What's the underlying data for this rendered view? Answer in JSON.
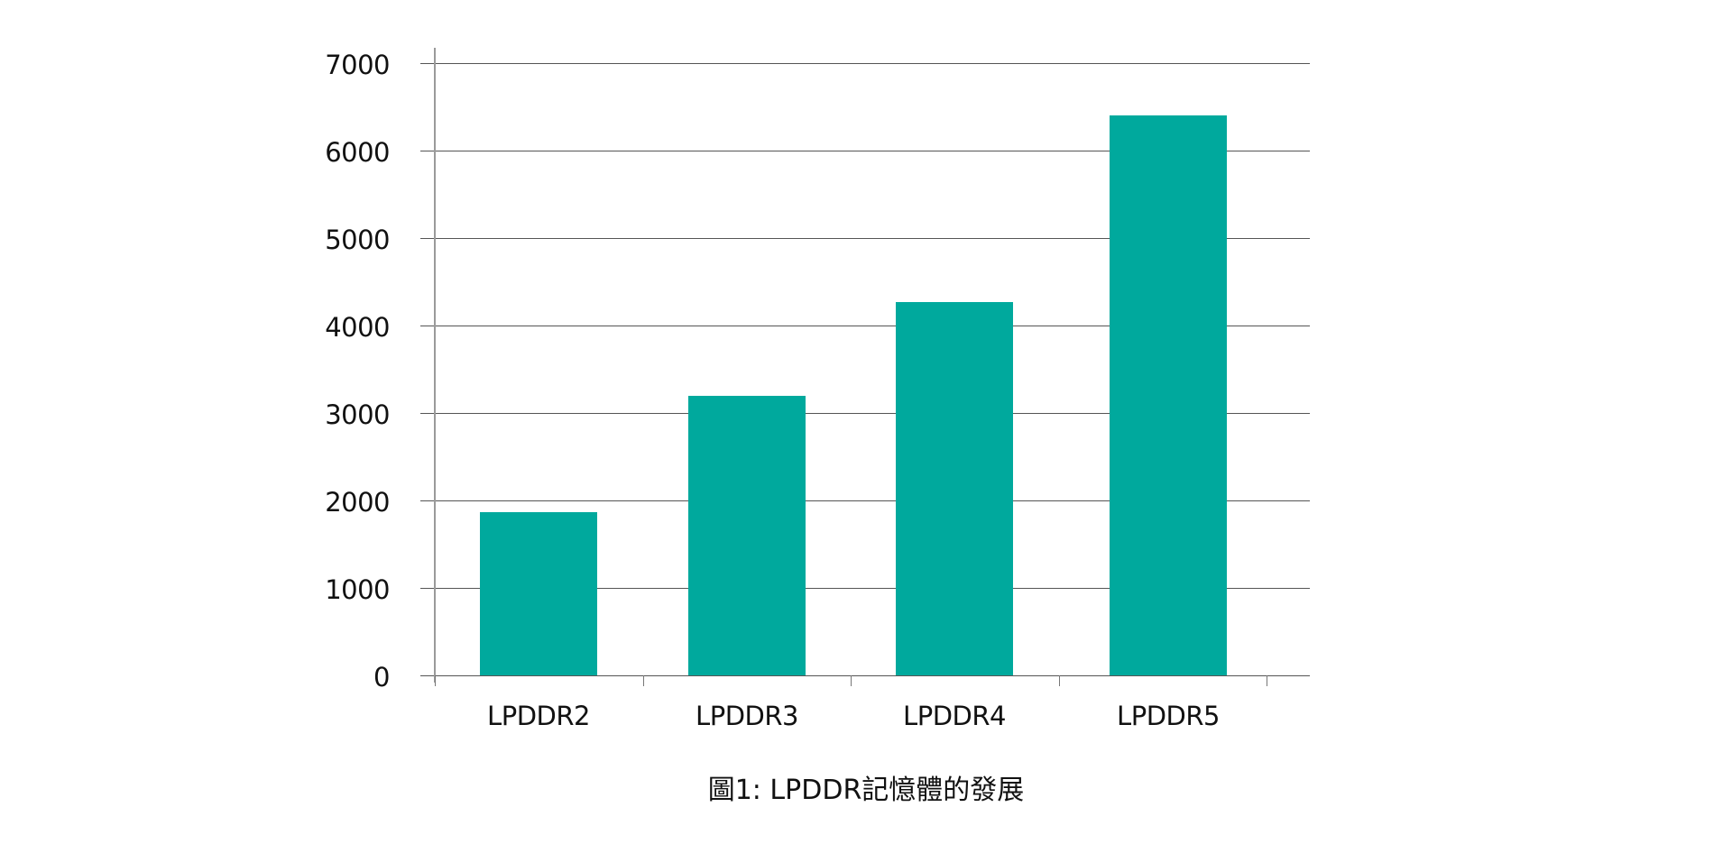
{
  "chart_data": {
    "type": "bar",
    "title": "",
    "caption": "圖1: LPDDR記憶體的發展",
    "categories": [
      "LPDDR2",
      "LPDDR3",
      "LPDDR4",
      "LPDDR5"
    ],
    "values": [
      1866,
      3200,
      4266,
      6400
    ],
    "xlabel": "",
    "ylabel": "",
    "ylim": [
      0,
      7000
    ],
    "yticks": [
      0,
      1000,
      2000,
      3000,
      4000,
      5000,
      6000,
      7000
    ],
    "grid": true,
    "legend": "none",
    "bar_color": "#00a99d"
  },
  "colors": {
    "bar": "#00a99d",
    "grid": "#555555",
    "axis": "#9a9a9a",
    "text": "#111111"
  }
}
